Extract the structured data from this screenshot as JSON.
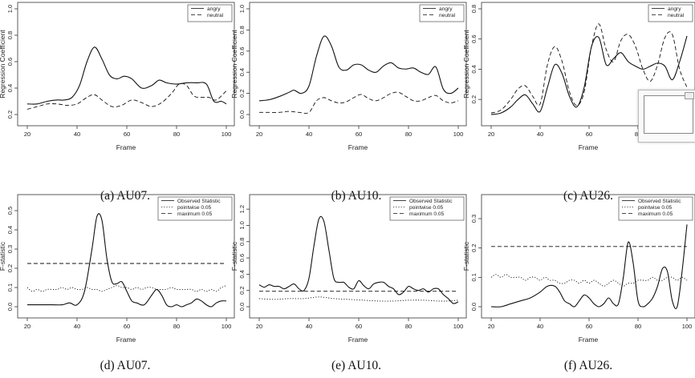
{
  "chart_data": [
    {
      "type": "line",
      "caption": "(a) AU07.",
      "xlabel": "Frame",
      "ylabel": "Regression Coefficient",
      "xlim": [
        20,
        100
      ],
      "ylim": [
        0.2,
        1.0
      ],
      "xticks": [
        "20",
        "40",
        "60",
        "80",
        "100"
      ],
      "yticks": [
        "0.2",
        "0.4",
        "0.6",
        "0.8",
        "1.0"
      ],
      "legend": "top-right",
      "series": [
        {
          "name": "angry",
          "style": "solid",
          "x": [
            20,
            24,
            28,
            32,
            35,
            38,
            41,
            44,
            47,
            50,
            53,
            56,
            59,
            62,
            66,
            70,
            73,
            76,
            80,
            84,
            88,
            92,
            95,
            98,
            100
          ],
          "y": [
            0.28,
            0.28,
            0.3,
            0.31,
            0.31,
            0.33,
            0.42,
            0.6,
            0.71,
            0.62,
            0.5,
            0.47,
            0.49,
            0.47,
            0.4,
            0.42,
            0.46,
            0.44,
            0.43,
            0.44,
            0.44,
            0.43,
            0.3,
            0.3,
            0.28
          ]
        },
        {
          "name": "neutral",
          "style": "dashed",
          "x": [
            20,
            24,
            28,
            32,
            36,
            40,
            44,
            47,
            50,
            54,
            58,
            62,
            66,
            70,
            74,
            78,
            81,
            84,
            87,
            90,
            93,
            96,
            100
          ],
          "y": [
            0.24,
            0.26,
            0.28,
            0.28,
            0.27,
            0.28,
            0.33,
            0.35,
            0.31,
            0.26,
            0.27,
            0.31,
            0.29,
            0.26,
            0.29,
            0.36,
            0.43,
            0.42,
            0.34,
            0.33,
            0.33,
            0.31,
            0.38
          ]
        }
      ]
    },
    {
      "type": "line",
      "caption": "(b) AU10.",
      "xlabel": "Frame",
      "ylabel": "Regression Coefficient",
      "xlim": [
        20,
        100
      ],
      "ylim": [
        0.0,
        1.0
      ],
      "xticks": [
        "20",
        "40",
        "60",
        "80",
        "100"
      ],
      "yticks": [
        "0.0",
        "0.2",
        "0.4",
        "0.6",
        "0.8",
        "1.0"
      ],
      "legend": "top-right",
      "series": [
        {
          "name": "angry",
          "style": "solid",
          "x": [
            20,
            24,
            28,
            32,
            34,
            37,
            40,
            43,
            46,
            49,
            52,
            55,
            58,
            61,
            64,
            67,
            70,
            73,
            76,
            79,
            82,
            85,
            88,
            91,
            94,
            97,
            100
          ],
          "y": [
            0.13,
            0.14,
            0.17,
            0.21,
            0.23,
            0.2,
            0.27,
            0.55,
            0.74,
            0.65,
            0.45,
            0.42,
            0.47,
            0.47,
            0.42,
            0.4,
            0.46,
            0.49,
            0.44,
            0.43,
            0.44,
            0.4,
            0.38,
            0.45,
            0.24,
            0.2,
            0.25
          ]
        },
        {
          "name": "neutral",
          "style": "dashed",
          "x": [
            20,
            24,
            28,
            32,
            36,
            40,
            43,
            46,
            49,
            52,
            55,
            58,
            61,
            64,
            67,
            70,
            73,
            76,
            79,
            82,
            85,
            88,
            91,
            94,
            97,
            100
          ],
          "y": [
            0.02,
            0.02,
            0.02,
            0.03,
            0.02,
            0.02,
            0.13,
            0.16,
            0.13,
            0.11,
            0.12,
            0.16,
            0.19,
            0.15,
            0.13,
            0.16,
            0.2,
            0.21,
            0.17,
            0.13,
            0.13,
            0.16,
            0.18,
            0.13,
            0.11,
            0.13
          ]
        }
      ]
    },
    {
      "type": "line",
      "caption": "(c) AU26.",
      "xlabel": "Frame",
      "ylabel": "Regression Coefficient",
      "xlim": [
        20,
        100
      ],
      "ylim": [
        0.1,
        0.8
      ],
      "xticks": [
        "20",
        "40",
        "60",
        "80",
        "100"
      ],
      "yticks": [
        "0.2",
        "0.4",
        "0.6",
        "0.8"
      ],
      "legend": "top-right",
      "series": [
        {
          "name": "angry",
          "style": "solid",
          "x": [
            20,
            24,
            28,
            31,
            34,
            37,
            40,
            43,
            46,
            49,
            52,
            55,
            58,
            61,
            64,
            67,
            70,
            73,
            76,
            79,
            82,
            85,
            88,
            91,
            94,
            97,
            100
          ],
          "y": [
            0.1,
            0.11,
            0.15,
            0.2,
            0.23,
            0.17,
            0.12,
            0.28,
            0.43,
            0.37,
            0.22,
            0.15,
            0.28,
            0.55,
            0.61,
            0.43,
            0.47,
            0.51,
            0.45,
            0.42,
            0.4,
            0.42,
            0.44,
            0.42,
            0.33,
            0.45,
            0.62
          ]
        },
        {
          "name": "neutral",
          "style": "dashed",
          "x": [
            20,
            24,
            28,
            31,
            34,
            37,
            40,
            43,
            46,
            49,
            52,
            55,
            58,
            61,
            64,
            67,
            70,
            73,
            76,
            79,
            82,
            85,
            88,
            91,
            94,
            97,
            100
          ],
          "y": [
            0.11,
            0.13,
            0.2,
            0.27,
            0.29,
            0.22,
            0.17,
            0.43,
            0.55,
            0.45,
            0.25,
            0.16,
            0.25,
            0.55,
            0.7,
            0.53,
            0.45,
            0.59,
            0.63,
            0.55,
            0.4,
            0.32,
            0.43,
            0.61,
            0.63,
            0.4,
            0.28
          ]
        }
      ]
    },
    {
      "type": "line",
      "caption": "(d) AU07.",
      "xlabel": "Frame",
      "ylabel": "F-statistic",
      "xlim": [
        20,
        100
      ],
      "ylim": [
        0.0,
        0.55
      ],
      "xticks": [
        "20",
        "40",
        "60",
        "80",
        "100"
      ],
      "yticks": [
        "0.0",
        "0.1",
        "0.2",
        "0.3",
        "0.4",
        "0.5"
      ],
      "legend": "top-right",
      "series": [
        {
          "name": "Observed Statistic",
          "style": "solid",
          "x": [
            20,
            25,
            30,
            34,
            37,
            40,
            43,
            46,
            48,
            50,
            52,
            54,
            56,
            58,
            60,
            62,
            64,
            67,
            70,
            72,
            74,
            76,
            78,
            80,
            82,
            84,
            86,
            88,
            90,
            92,
            94,
            96,
            98,
            100
          ],
          "y": [
            0.01,
            0.01,
            0.01,
            0.01,
            0.02,
            0.01,
            0.08,
            0.3,
            0.47,
            0.45,
            0.25,
            0.13,
            0.12,
            0.13,
            0.08,
            0.03,
            0.02,
            0.01,
            0.06,
            0.09,
            0.06,
            0.01,
            0.0,
            0.01,
            0.0,
            0.01,
            0.02,
            0.04,
            0.03,
            0.01,
            0.0,
            0.02,
            0.03,
            0.03
          ]
        },
        {
          "name": "pointwise 0.05",
          "style": "dotted",
          "x": [
            20,
            22,
            24,
            26,
            28,
            30,
            32,
            34,
            36,
            38,
            40,
            42,
            44,
            46,
            48,
            50,
            52,
            54,
            56,
            58,
            60,
            62,
            64,
            66,
            68,
            70,
            72,
            74,
            76,
            78,
            80,
            82,
            84,
            86,
            88,
            90,
            92,
            94,
            96,
            98,
            100
          ],
          "y": [
            0.1,
            0.08,
            0.09,
            0.08,
            0.09,
            0.09,
            0.09,
            0.1,
            0.09,
            0.1,
            0.09,
            0.09,
            0.1,
            0.09,
            0.09,
            0.08,
            0.09,
            0.1,
            0.11,
            0.1,
            0.1,
            0.09,
            0.1,
            0.09,
            0.1,
            0.1,
            0.09,
            0.09,
            0.09,
            0.1,
            0.09,
            0.09,
            0.09,
            0.09,
            0.08,
            0.09,
            0.08,
            0.09,
            0.08,
            0.1,
            0.11
          ]
        },
        {
          "name": "maximum 0.05",
          "style": "dashed",
          "x": [
            20,
            100
          ],
          "y": [
            0.225,
            0.225
          ]
        }
      ]
    },
    {
      "type": "line",
      "caption": "(e) AU10.",
      "xlabel": "Frame",
      "ylabel": "F-statistic",
      "xlim": [
        20,
        100
      ],
      "ylim": [
        0.0,
        1.3
      ],
      "xticks": [
        "20",
        "40",
        "60",
        "80",
        "100"
      ],
      "yticks": [
        "0.0",
        "0.2",
        "0.4",
        "0.6",
        "0.8",
        "1.0",
        "1.2"
      ],
      "legend": "top-right",
      "series": [
        {
          "name": "Observed Statistic",
          "style": "solid",
          "x": [
            20,
            22,
            24,
            26,
            28,
            30,
            32,
            34,
            36,
            38,
            40,
            42,
            44,
            46,
            48,
            50,
            52,
            54,
            56,
            58,
            60,
            62,
            64,
            66,
            68,
            70,
            72,
            74,
            76,
            78,
            80,
            82,
            84,
            86,
            88,
            90,
            92,
            94,
            96,
            98,
            100
          ],
          "y": [
            0.27,
            0.24,
            0.27,
            0.25,
            0.25,
            0.22,
            0.25,
            0.28,
            0.22,
            0.2,
            0.35,
            0.75,
            1.08,
            1.05,
            0.7,
            0.35,
            0.3,
            0.3,
            0.24,
            0.22,
            0.32,
            0.26,
            0.22,
            0.28,
            0.3,
            0.3,
            0.25,
            0.22,
            0.15,
            0.18,
            0.25,
            0.22,
            0.2,
            0.22,
            0.18,
            0.22,
            0.22,
            0.15,
            0.1,
            0.04,
            0.06
          ]
        },
        {
          "name": "pointwise 0.05",
          "style": "dotted",
          "x": [
            20,
            26,
            32,
            38,
            44,
            50,
            56,
            62,
            68,
            74,
            80,
            86,
            92,
            96,
            100
          ],
          "y": [
            0.1,
            0.09,
            0.1,
            0.1,
            0.12,
            0.1,
            0.09,
            0.08,
            0.07,
            0.07,
            0.08,
            0.08,
            0.07,
            0.07,
            0.08
          ]
        },
        {
          "name": "maximum 0.05",
          "style": "dashed",
          "x": [
            20,
            100
          ],
          "y": [
            0.19,
            0.19
          ]
        }
      ]
    },
    {
      "type": "line",
      "caption": "(f) AU26.",
      "xlabel": "Frame",
      "ylabel": "F-statistic",
      "xlim": [
        20,
        100
      ],
      "ylim": [
        0.0,
        0.36
      ],
      "xticks": [
        "20",
        "40",
        "60",
        "80",
        "100"
      ],
      "yticks": [
        "0.0",
        "0.1",
        "0.2",
        "0.3"
      ],
      "legend": "top-right",
      "series": [
        {
          "name": "Observed Statistic",
          "style": "solid",
          "x": [
            20,
            24,
            28,
            32,
            36,
            40,
            43,
            46,
            48,
            50,
            52,
            54,
            56,
            58,
            60,
            62,
            64,
            66,
            68,
            70,
            72,
            74,
            76,
            78,
            80,
            82,
            84,
            86,
            88,
            90,
            92,
            94,
            96,
            98,
            100
          ],
          "y": [
            0.0,
            0.0,
            0.01,
            0.02,
            0.03,
            0.05,
            0.07,
            0.07,
            0.05,
            0.02,
            0.01,
            0.0,
            0.02,
            0.04,
            0.03,
            0.01,
            0.0,
            0.01,
            0.03,
            0.01,
            0.01,
            0.1,
            0.22,
            0.15,
            0.02,
            0.0,
            0.01,
            0.03,
            0.07,
            0.13,
            0.12,
            0.02,
            0.0,
            0.12,
            0.28
          ]
        },
        {
          "name": "pointwise 0.05",
          "style": "dotted",
          "x": [
            20,
            22,
            24,
            26,
            28,
            30,
            32,
            34,
            36,
            38,
            40,
            42,
            44,
            46,
            48,
            50,
            52,
            54,
            56,
            58,
            60,
            62,
            64,
            66,
            68,
            70,
            72,
            74,
            76,
            78,
            80,
            82,
            84,
            86,
            88,
            90,
            92,
            94,
            96,
            98,
            100
          ],
          "y": [
            0.1,
            0.11,
            0.1,
            0.11,
            0.1,
            0.1,
            0.1,
            0.09,
            0.1,
            0.1,
            0.09,
            0.1,
            0.09,
            0.09,
            0.08,
            0.08,
            0.09,
            0.09,
            0.08,
            0.09,
            0.08,
            0.09,
            0.08,
            0.07,
            0.08,
            0.09,
            0.08,
            0.07,
            0.08,
            0.08,
            0.09,
            0.09,
            0.09,
            0.1,
            0.09,
            0.09,
            0.1,
            0.1,
            0.09,
            0.1,
            0.09
          ]
        },
        {
          "name": "maximum 0.05",
          "style": "dashed",
          "x": [
            20,
            100
          ],
          "y": [
            0.205,
            0.205
          ]
        }
      ]
    }
  ]
}
